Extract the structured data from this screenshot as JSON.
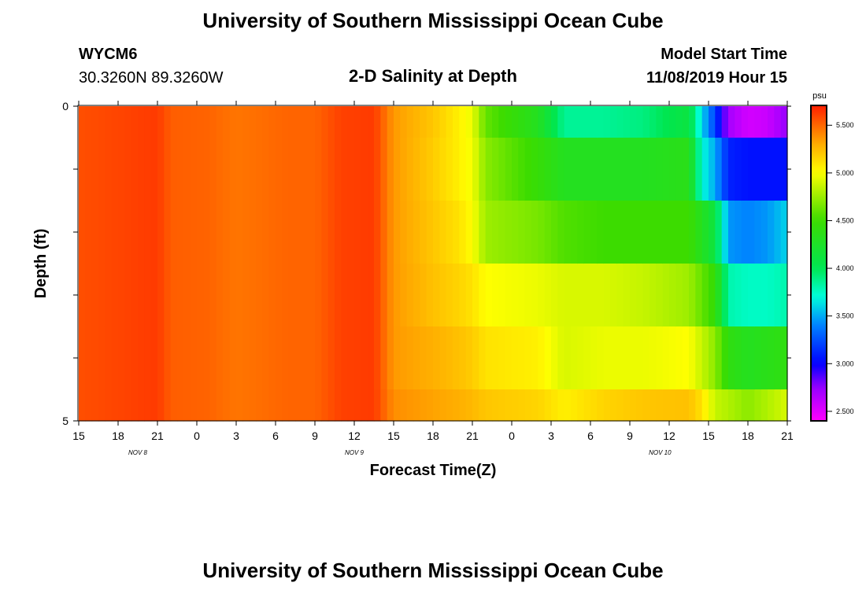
{
  "page": {
    "title": "University of Southern Mississippi Ocean Cube",
    "footer_title": "University of Southern Mississippi Ocean Cube",
    "station_id": "WYCM6",
    "coordinates": "30.3260N 89.3260W",
    "subtitle": "2-D Salinity at Depth",
    "model_start_label": "Model Start Time",
    "model_start_value": "11/08/2019 Hour 15"
  },
  "chart_data": {
    "type": "heatmap",
    "title": "2-D Salinity at Depth",
    "xlabel": "Forecast Time(Z)",
    "ylabel": "Depth (ft)",
    "x_range_hours": [
      0,
      54
    ],
    "ylim": [
      0,
      5
    ],
    "y_inverted": true,
    "x_ticks": [
      {
        "hour": 0,
        "label": "15"
      },
      {
        "hour": 3,
        "label": "18"
      },
      {
        "hour": 6,
        "label": "21"
      },
      {
        "hour": 9,
        "label": "0"
      },
      {
        "hour": 12,
        "label": "3"
      },
      {
        "hour": 15,
        "label": "6"
      },
      {
        "hour": 18,
        "label": "9"
      },
      {
        "hour": 21,
        "label": "12"
      },
      {
        "hour": 24,
        "label": "15"
      },
      {
        "hour": 27,
        "label": "18"
      },
      {
        "hour": 30,
        "label": "21"
      },
      {
        "hour": 33,
        "label": "0"
      },
      {
        "hour": 36,
        "label": "3"
      },
      {
        "hour": 39,
        "label": "6"
      },
      {
        "hour": 42,
        "label": "9"
      },
      {
        "hour": 45,
        "label": "12"
      },
      {
        "hour": 48,
        "label": "15"
      },
      {
        "hour": 51,
        "label": "18"
      },
      {
        "hour": 54,
        "label": "21"
      }
    ],
    "date_labels": [
      {
        "hour": 4.5,
        "label": "NOV 8"
      },
      {
        "hour": 21,
        "label": "NOV 9"
      },
      {
        "hour": 44.3,
        "label": "NOV 10"
      }
    ],
    "y_tick_values": [
      0,
      1,
      2,
      3,
      4,
      5
    ],
    "y_tick_labels": [
      {
        "value": 0,
        "label": "0"
      },
      {
        "value": 5,
        "label": "5"
      }
    ],
    "colorbar": {
      "unit": "psu",
      "min": 2.4,
      "max": 5.7,
      "tick_values": [
        2.5,
        3.0,
        3.5,
        4.0,
        4.5,
        5.0,
        5.5
      ],
      "tick_labels": [
        "2.500",
        "3.000",
        "3.500",
        "4.000",
        "4.500",
        "5.000",
        "5.500"
      ]
    },
    "layer_depths": [
      [
        0,
        0.5
      ],
      [
        0.5,
        1.5
      ],
      [
        1.5,
        2.5
      ],
      [
        2.5,
        3.5
      ],
      [
        3.5,
        4.5
      ],
      [
        4.5,
        5.0
      ]
    ],
    "salinity_keyframes": [
      {
        "hour": 0,
        "values": [
          5.56,
          5.56,
          5.56,
          5.56,
          5.56,
          5.56
        ]
      },
      {
        "hour": 6,
        "values": [
          5.62,
          5.62,
          5.62,
          5.62,
          5.62,
          5.62
        ]
      },
      {
        "hour": 7,
        "values": [
          5.52,
          5.52,
          5.52,
          5.52,
          5.52,
          5.52
        ]
      },
      {
        "hour": 10,
        "values": [
          5.5,
          5.5,
          5.5,
          5.5,
          5.5,
          5.5
        ]
      },
      {
        "hour": 12,
        "values": [
          5.45,
          5.45,
          5.45,
          5.45,
          5.45,
          5.45
        ]
      },
      {
        "hour": 16,
        "values": [
          5.5,
          5.5,
          5.5,
          5.5,
          5.5,
          5.5
        ]
      },
      {
        "hour": 18,
        "values": [
          5.5,
          5.5,
          5.5,
          5.5,
          5.5,
          5.5
        ]
      },
      {
        "hour": 20,
        "values": [
          5.6,
          5.6,
          5.6,
          5.6,
          5.6,
          5.6
        ]
      },
      {
        "hour": 22.5,
        "values": [
          5.62,
          5.62,
          5.62,
          5.62,
          5.62,
          5.62
        ]
      },
      {
        "hour": 24,
        "values": [
          5.35,
          5.35,
          5.35,
          5.35,
          5.35,
          5.38
        ]
      },
      {
        "hour": 27,
        "values": [
          5.2,
          5.18,
          5.2,
          5.22,
          5.28,
          5.32
        ]
      },
      {
        "hour": 29,
        "values": [
          5.05,
          5.05,
          5.1,
          5.15,
          5.22,
          5.28
        ]
      },
      {
        "hour": 30,
        "values": [
          4.95,
          4.97,
          5.0,
          5.1,
          5.18,
          5.25
        ]
      },
      {
        "hour": 31,
        "values": [
          4.6,
          4.7,
          4.75,
          5.0,
          5.1,
          5.2
        ]
      },
      {
        "hour": 35,
        "values": [
          4.3,
          4.45,
          4.65,
          4.95,
          5.05,
          5.15
        ]
      },
      {
        "hour": 37,
        "values": [
          3.85,
          4.3,
          4.55,
          4.9,
          4.9,
          5.05
        ]
      },
      {
        "hour": 40,
        "values": [
          3.85,
          4.3,
          4.5,
          4.9,
          4.95,
          5.15
        ]
      },
      {
        "hour": 43,
        "values": [
          3.9,
          4.3,
          4.5,
          4.85,
          4.95,
          5.2
        ]
      },
      {
        "hour": 46.5,
        "values": [
          4.1,
          4.35,
          4.5,
          4.75,
          5.0,
          5.22
        ]
      },
      {
        "hour": 47.5,
        "values": [
          3.6,
          3.7,
          4.3,
          4.6,
          4.85,
          5.1
        ]
      },
      {
        "hour": 48.5,
        "values": [
          3.2,
          3.5,
          4.1,
          4.45,
          4.7,
          4.85
        ]
      },
      {
        "hour": 49.5,
        "values": [
          2.7,
          3.1,
          3.45,
          3.8,
          4.4,
          4.8
        ]
      },
      {
        "hour": 51,
        "values": [
          2.55,
          3.05,
          3.4,
          3.75,
          4.3,
          4.7
        ]
      },
      {
        "hour": 52.5,
        "values": [
          2.58,
          3.05,
          3.45,
          3.75,
          4.35,
          4.8
        ]
      },
      {
        "hour": 54,
        "values": [
          2.75,
          3.05,
          3.6,
          3.8,
          4.4,
          4.9
        ]
      }
    ]
  }
}
